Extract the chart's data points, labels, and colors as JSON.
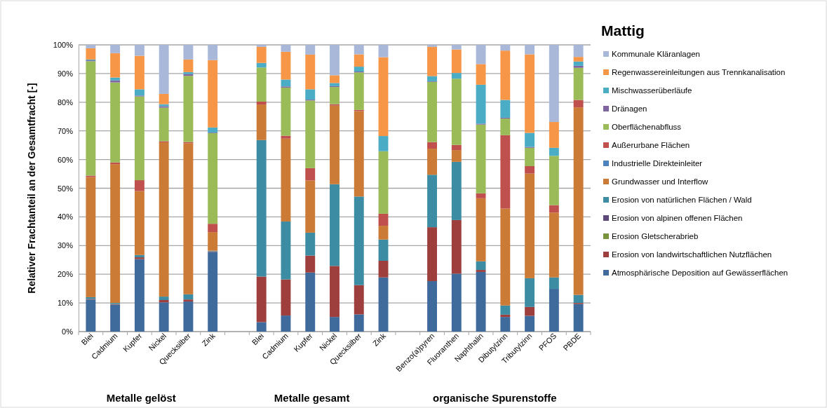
{
  "chart_data": {
    "type": "bar",
    "title": "Mattig",
    "ylabel": "Relativer Frachtanteil an der Gesamtfracht [-]",
    "categories": [
      "Blei",
      "Cadmium",
      "Kupfer",
      "Nickel",
      "Quecksilber",
      "Zink",
      null,
      "Blei",
      "Cadmium",
      "Kupfer",
      "Nickel",
      "Quecksilber",
      "Zink",
      null,
      "Benzo(a)pyren",
      "Fluoranthen",
      "Naphthalin",
      "Dibutylzinn",
      "Tributylzinn",
      "PFOS",
      "PBDE"
    ],
    "stacked": true,
    "ylim": [
      0,
      100
    ],
    "yticks": [
      {
        "value": 0,
        "label": "0%"
      },
      {
        "value": 10,
        "label": "10%"
      },
      {
        "value": 20,
        "label": "20%"
      },
      {
        "value": 30,
        "label": "30%"
      },
      {
        "value": 40,
        "label": "40%"
      },
      {
        "value": 50,
        "label": "50%"
      },
      {
        "value": 60,
        "label": "60%"
      },
      {
        "value": 70,
        "label": "70%"
      },
      {
        "value": 80,
        "label": "80%"
      },
      {
        "value": 90,
        "label": "90%"
      },
      {
        "value": 100,
        "label": "100%"
      }
    ],
    "grid": "y",
    "legend": "right",
    "annotations": [
      "Metalle gelöst",
      "Metalle gesamt",
      "organische Spurenstoffe"
    ],
    "series": [
      {
        "name": "Atmosphärische Deposition auf Gewässerflächen",
        "color": "#3f6a9c",
        "values": [
          11.2,
          9.4,
          25.3,
          10.2,
          10.5,
          27.8,
          null,
          3.3,
          5.6,
          20.6,
          5.1,
          6.0,
          18.9,
          null,
          17.6,
          20.2,
          20.8,
          5.1,
          5.5,
          14.9,
          9.6
        ]
      },
      {
        "name": "Erosion von landwirtschaftlichen Nutzflächen",
        "color": "#9e3f3d",
        "values": [
          0.2,
          0.2,
          0.6,
          0.8,
          0.7,
          0.2,
          null,
          15.9,
          12.6,
          5.9,
          17.8,
          10.2,
          5.8,
          null,
          18.8,
          18.7,
          0.7,
          0.8,
          3.1,
          0,
          0.4
        ]
      },
      {
        "name": "Erosion Gletscherabrieb",
        "color": "#77933c",
        "values": [
          0,
          0,
          0,
          0,
          0,
          0,
          null,
          0,
          0,
          0,
          0,
          0,
          0,
          null,
          0,
          0,
          0,
          0,
          0,
          0,
          0
        ]
      },
      {
        "name": "Erosion von alpinen offenen Flächen",
        "color": "#604a7b",
        "values": [
          0,
          0,
          0,
          0,
          0,
          0,
          null,
          0,
          0,
          0,
          0,
          0,
          0,
          null,
          0,
          0,
          0,
          0,
          0,
          0,
          0
        ]
      },
      {
        "name": "Erosion von natürlichen Flächen / Wald",
        "color": "#3c8da3",
        "values": [
          0.6,
          0.4,
          0.8,
          1.2,
          1.8,
          0.2,
          null,
          47.6,
          20.2,
          8.0,
          28.5,
          30.9,
          7.4,
          null,
          18.3,
          20.3,
          3.0,
          3.2,
          10.0,
          4.0,
          2.8
        ]
      },
      {
        "name": "Grundwasser und Interflow",
        "color": "#cc7b36",
        "values": [
          41.9,
          48.4,
          22.3,
          53.8,
          52.7,
          6.5,
          null,
          12.4,
          28.9,
          18.2,
          27.4,
          29.8,
          4.8,
          null,
          9.1,
          4.1,
          22.0,
          33.8,
          36.5,
          22.6,
          65.4
        ]
      },
      {
        "name": "Industrielle Direkteinleiter",
        "color": "#4f81bd",
        "values": [
          0,
          0,
          0,
          0,
          0,
          0,
          null,
          0,
          0,
          0,
          0,
          0,
          0,
          null,
          0,
          0,
          0,
          0,
          0,
          0,
          0
        ]
      },
      {
        "name": "Außerurbane Flächen",
        "color": "#c0504d",
        "values": [
          0.5,
          0.6,
          3.8,
          0.4,
          0.4,
          2.9,
          null,
          1.0,
          1.0,
          4.3,
          0.5,
          0.4,
          4.2,
          null,
          2.3,
          1.8,
          1.7,
          25.6,
          2.6,
          2.6,
          2.6
        ]
      },
      {
        "name": "Oberflächenabfluss",
        "color": "#9bbb59",
        "values": [
          39.9,
          27.9,
          29.2,
          11.7,
          23.1,
          31.6,
          null,
          11.9,
          16.8,
          23.6,
          6.0,
          13.1,
          21.8,
          null,
          21.0,
          23.1,
          24.0,
          5.8,
          6.4,
          17.2,
          11.2
        ]
      },
      {
        "name": "Dränagen",
        "color": "#8064a2",
        "values": [
          0.3,
          0.7,
          0.3,
          0.5,
          0.6,
          0.2,
          null,
          0,
          0.4,
          0.3,
          0.3,
          0.3,
          0,
          null,
          0.2,
          0,
          0.3,
          0.3,
          0.3,
          0,
          0.7
        ]
      },
      {
        "name": "Mischwasserüberläufe",
        "color": "#4bacc6",
        "values": [
          0.3,
          1.0,
          2.2,
          0.7,
          0.7,
          1.8,
          null,
          1.6,
          2.4,
          3.6,
          1.1,
          1.7,
          5.3,
          null,
          1.8,
          2.0,
          13.6,
          6.2,
          4.9,
          2.8,
          1.5
        ]
      },
      {
        "name": "Regenwassereinleitungen aus Trennkanalisation",
        "color": "#f79646",
        "values": [
          3.9,
          8.5,
          11.7,
          3.6,
          4.4,
          23.5,
          null,
          5.6,
          9.7,
          12.1,
          2.7,
          4.3,
          27.5,
          null,
          10.2,
          8.2,
          7.2,
          17.2,
          27.4,
          9.0,
          1.6
        ]
      },
      {
        "name": "Kommunale Kläranlagen",
        "color": "#a9b8d8",
        "values": [
          1.2,
          2.9,
          3.8,
          17.1,
          5.1,
          5.3,
          null,
          0.7,
          2.4,
          3.4,
          10.6,
          3.3,
          4.3,
          null,
          0.7,
          1.6,
          6.7,
          2.0,
          3.3,
          26.9,
          4.2
        ]
      }
    ]
  }
}
